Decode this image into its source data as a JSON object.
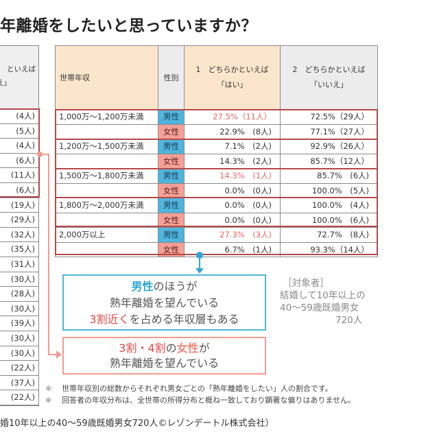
{
  "title": "年離婚をしたいと思っていますか？",
  "left_table": {
    "header_line1": "といえば",
    "header_line2": "え」",
    "rows": [
      "(4人)",
      "(5人)",
      "(4人)",
      "(6人)",
      "(11人)",
      "(6人)",
      "(19人)",
      "(29人)",
      "(32人)",
      "(35人)",
      "(31人)",
      "(30人)",
      "(28人)",
      "(30人)",
      "(39人)",
      "(30人)",
      "(30人)",
      "(22人)",
      "(37人)",
      "(22人)"
    ]
  },
  "main_table": {
    "headers": {
      "income": "世帯年収",
      "sex": "性別",
      "yes_line1": "1　どちらかといえば",
      "yes_line2": "「はい」",
      "no_line1": "2　どちらかといえば",
      "no_line2": "「いいえ」"
    },
    "rows": [
      {
        "income": "1,000万～1,200万未満",
        "sex": "男性",
        "sex_type": "male",
        "yes": "27.5%（11人）",
        "yes_highlight": true,
        "no": "72.5%（29人）"
      },
      {
        "income": "",
        "sex": "女性",
        "sex_type": "female",
        "yes": "22.9%　(8人)",
        "yes_highlight": false,
        "no": "77.1%（27人）"
      },
      {
        "income": "1,200万～1,500万未満",
        "sex": "男性",
        "sex_type": "male",
        "yes": "7.1%　(2人)",
        "yes_highlight": false,
        "no": "92.9%（26人）"
      },
      {
        "income": "",
        "sex": "女性",
        "sex_type": "female",
        "yes": "14.3%　(2人)",
        "yes_highlight": false,
        "no": "85.7%（12人）"
      },
      {
        "income": "1,500万～1,800万未満",
        "sex": "男性",
        "sex_type": "male",
        "yes": "14.3%　(1人)",
        "yes_highlight": true,
        "no": "85.7%　(6人)"
      },
      {
        "income": "",
        "sex": "女性",
        "sex_type": "female",
        "yes": "0.0%　(0人)",
        "yes_highlight": false,
        "no": "100.0%　(5人)"
      },
      {
        "income": "1,800万～2,000万未満",
        "sex": "男性",
        "sex_type": "male",
        "yes": "0.0%　(0人)",
        "yes_highlight": false,
        "no": "100.0%　(4人)"
      },
      {
        "income": "",
        "sex": "女性",
        "sex_type": "female",
        "yes": "0.0%　(0人)",
        "yes_highlight": false,
        "no": "100.0%　(6人)"
      },
      {
        "income": "2,000万以上",
        "sex": "男性",
        "sex_type": "male",
        "yes": "27.3%　(3人)",
        "yes_highlight": true,
        "no": "72.7%　(8人)"
      },
      {
        "income": "",
        "sex": "女性",
        "sex_type": "female",
        "yes": "6.7%　(1人)",
        "yes_highlight": false,
        "no": "93.3%（14人）"
      }
    ]
  },
  "callout_blue": {
    "line1_em": "男性",
    "line1_rest": "のほうが",
    "line2": "熟年離婚を望んでいる",
    "line3_em": "3割近く",
    "line3_rest": "を占める年収層もある"
  },
  "callout_pink": {
    "line1_em1": "3割・4割",
    "line1_mid": "の",
    "line1_em2": "女性",
    "line1_rest": "が",
    "line2": "熟年離婚を望んでいる"
  },
  "target": {
    "text": " ［対象者］\n結婚して10年以上の\n40～59歳既婚男女\n　　　　　　720人"
  },
  "notes": [
    {
      "mark": "※",
      "text": "世帯年収別の総数からそれぞれ男女ごとの「熟年離婚をしたい」人の割合です。"
    },
    {
      "mark": "※",
      "text": "回答者の年収分布は、全世帯の所得分布と概ね一致しており顕著な偏りはありません。"
    }
  ],
  "source": "婚10年以上の40～59歳既婚男女720人©レゾンデートル株式会社）",
  "colors": {
    "male": "#4fb5dc",
    "female": "#f4a097",
    "highlight_red": "#e86565",
    "outline_red": "#b64848",
    "header_peach": "#fbe6cc",
    "callout_blue": "#4db6d9",
    "callout_pink": "#f29a90"
  }
}
